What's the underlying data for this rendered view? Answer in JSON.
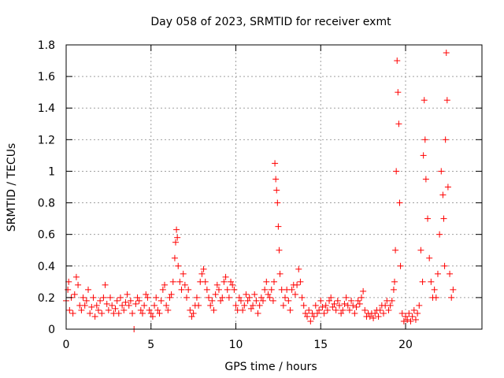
{
  "chart_data": {
    "type": "scatter",
    "title": "Day 058 of 2023, SRMTID for receiver exmt",
    "xlabel": "GPS time / hours",
    "ylabel": "SRMTID / TECUs",
    "xlim": [
      0,
      24.5
    ],
    "ylim": [
      0,
      1.8
    ],
    "x_ticks": [
      0,
      5,
      10,
      15,
      20
    ],
    "x_tick_labels": [
      "0",
      "5",
      "10",
      "15",
      "20"
    ],
    "y_ticks": [
      0,
      0.2,
      0.4,
      0.6,
      0.8,
      1,
      1.2,
      1.4,
      1.6,
      1.8
    ],
    "y_tick_labels": [
      "0",
      "0.2",
      "0.4",
      "0.6",
      "0.8",
      "1",
      "1.2",
      "1.4",
      "1.6",
      "1.8"
    ],
    "grid": true,
    "marker": "plus",
    "color": "#ff0000",
    "series": [
      {
        "name": "SRMTID",
        "points": [
          [
            0.0,
            0.18
          ],
          [
            0.1,
            0.25
          ],
          [
            0.15,
            0.3
          ],
          [
            0.2,
            0.12
          ],
          [
            0.3,
            0.2
          ],
          [
            0.4,
            0.1
          ],
          [
            0.5,
            0.22
          ],
          [
            0.6,
            0.33
          ],
          [
            0.7,
            0.28
          ],
          [
            0.8,
            0.15
          ],
          [
            0.9,
            0.12
          ],
          [
            1.0,
            0.2
          ],
          [
            1.1,
            0.15
          ],
          [
            1.2,
            0.18
          ],
          [
            1.3,
            0.25
          ],
          [
            1.4,
            0.1
          ],
          [
            1.5,
            0.14
          ],
          [
            1.6,
            0.2
          ],
          [
            1.7,
            0.08
          ],
          [
            1.8,
            0.15
          ],
          [
            1.9,
            0.12
          ],
          [
            2.0,
            0.18
          ],
          [
            2.1,
            0.1
          ],
          [
            2.2,
            0.2
          ],
          [
            2.3,
            0.28
          ],
          [
            2.4,
            0.16
          ],
          [
            2.5,
            0.12
          ],
          [
            2.6,
            0.2
          ],
          [
            2.7,
            0.15
          ],
          [
            2.8,
            0.1
          ],
          [
            2.9,
            0.13
          ],
          [
            3.0,
            0.18
          ],
          [
            3.1,
            0.1
          ],
          [
            3.2,
            0.2
          ],
          [
            3.3,
            0.15
          ],
          [
            3.4,
            0.12
          ],
          [
            3.5,
            0.17
          ],
          [
            3.6,
            0.22
          ],
          [
            3.7,
            0.15
          ],
          [
            3.8,
            0.18
          ],
          [
            3.9,
            0.1
          ],
          [
            4.0,
            0.0
          ],
          [
            4.1,
            0.16
          ],
          [
            4.2,
            0.2
          ],
          [
            4.3,
            0.18
          ],
          [
            4.4,
            0.12
          ],
          [
            4.5,
            0.1
          ],
          [
            4.6,
            0.15
          ],
          [
            4.7,
            0.22
          ],
          [
            4.8,
            0.2
          ],
          [
            4.9,
            0.12
          ],
          [
            5.0,
            0.1
          ],
          [
            5.1,
            0.08
          ],
          [
            5.2,
            0.15
          ],
          [
            5.3,
            0.2
          ],
          [
            5.4,
            0.12
          ],
          [
            5.5,
            0.1
          ],
          [
            5.6,
            0.18
          ],
          [
            5.7,
            0.25
          ],
          [
            5.8,
            0.28
          ],
          [
            5.9,
            0.15
          ],
          [
            6.0,
            0.12
          ],
          [
            6.1,
            0.2
          ],
          [
            6.2,
            0.22
          ],
          [
            6.3,
            0.3
          ],
          [
            6.4,
            0.45
          ],
          [
            6.45,
            0.55
          ],
          [
            6.5,
            0.63
          ],
          [
            6.55,
            0.58
          ],
          [
            6.6,
            0.4
          ],
          [
            6.7,
            0.3
          ],
          [
            6.8,
            0.25
          ],
          [
            6.9,
            0.35
          ],
          [
            7.0,
            0.28
          ],
          [
            7.1,
            0.2
          ],
          [
            7.2,
            0.25
          ],
          [
            7.3,
            0.12
          ],
          [
            7.4,
            0.08
          ],
          [
            7.5,
            0.1
          ],
          [
            7.6,
            0.15
          ],
          [
            7.7,
            0.2
          ],
          [
            7.8,
            0.15
          ],
          [
            7.9,
            0.3
          ],
          [
            8.0,
            0.35
          ],
          [
            8.1,
            0.38
          ],
          [
            8.2,
            0.3
          ],
          [
            8.3,
            0.25
          ],
          [
            8.4,
            0.2
          ],
          [
            8.5,
            0.15
          ],
          [
            8.6,
            0.18
          ],
          [
            8.7,
            0.12
          ],
          [
            8.8,
            0.22
          ],
          [
            8.9,
            0.28
          ],
          [
            9.0,
            0.25
          ],
          [
            9.1,
            0.18
          ],
          [
            9.2,
            0.2
          ],
          [
            9.3,
            0.3
          ],
          [
            9.4,
            0.33
          ],
          [
            9.5,
            0.25
          ],
          [
            9.6,
            0.2
          ],
          [
            9.7,
            0.3
          ],
          [
            9.8,
            0.28
          ],
          [
            9.9,
            0.25
          ],
          [
            10.0,
            0.15
          ],
          [
            10.1,
            0.12
          ],
          [
            10.2,
            0.2
          ],
          [
            10.3,
            0.18
          ],
          [
            10.4,
            0.12
          ],
          [
            10.5,
            0.15
          ],
          [
            10.6,
            0.22
          ],
          [
            10.7,
            0.18
          ],
          [
            10.8,
            0.2
          ],
          [
            10.9,
            0.13
          ],
          [
            11.0,
            0.15
          ],
          [
            11.1,
            0.22
          ],
          [
            11.2,
            0.18
          ],
          [
            11.3,
            0.1
          ],
          [
            11.4,
            0.15
          ],
          [
            11.5,
            0.2
          ],
          [
            11.6,
            0.18
          ],
          [
            11.7,
            0.25
          ],
          [
            11.8,
            0.3
          ],
          [
            11.9,
            0.22
          ],
          [
            12.0,
            0.2
          ],
          [
            12.1,
            0.25
          ],
          [
            12.2,
            0.18
          ],
          [
            12.25,
            0.3
          ],
          [
            12.3,
            1.05
          ],
          [
            12.35,
            0.95
          ],
          [
            12.4,
            0.88
          ],
          [
            12.45,
            0.8
          ],
          [
            12.5,
            0.65
          ],
          [
            12.55,
            0.5
          ],
          [
            12.6,
            0.35
          ],
          [
            12.7,
            0.25
          ],
          [
            12.8,
            0.15
          ],
          [
            12.9,
            0.2
          ],
          [
            13.0,
            0.25
          ],
          [
            13.1,
            0.18
          ],
          [
            13.2,
            0.12
          ],
          [
            13.3,
            0.25
          ],
          [
            13.4,
            0.28
          ],
          [
            13.5,
            0.22
          ],
          [
            13.6,
            0.28
          ],
          [
            13.7,
            0.38
          ],
          [
            13.8,
            0.3
          ],
          [
            13.9,
            0.2
          ],
          [
            14.0,
            0.15
          ],
          [
            14.1,
            0.1
          ],
          [
            14.2,
            0.08
          ],
          [
            14.3,
            0.12
          ],
          [
            14.4,
            0.05
          ],
          [
            14.5,
            0.1
          ],
          [
            14.6,
            0.08
          ],
          [
            14.7,
            0.15
          ],
          [
            14.8,
            0.1
          ],
          [
            14.9,
            0.12
          ],
          [
            15.0,
            0.18
          ],
          [
            15.1,
            0.14
          ],
          [
            15.2,
            0.1
          ],
          [
            15.3,
            0.15
          ],
          [
            15.4,
            0.12
          ],
          [
            15.5,
            0.18
          ],
          [
            15.6,
            0.2
          ],
          [
            15.7,
            0.14
          ],
          [
            15.8,
            0.16
          ],
          [
            15.9,
            0.12
          ],
          [
            16.0,
            0.18
          ],
          [
            16.1,
            0.15
          ],
          [
            16.2,
            0.1
          ],
          [
            16.3,
            0.12
          ],
          [
            16.4,
            0.16
          ],
          [
            16.5,
            0.2
          ],
          [
            16.6,
            0.15
          ],
          [
            16.7,
            0.12
          ],
          [
            16.8,
            0.18
          ],
          [
            16.9,
            0.15
          ],
          [
            17.0,
            0.1
          ],
          [
            17.1,
            0.14
          ],
          [
            17.2,
            0.18
          ],
          [
            17.3,
            0.16
          ],
          [
            17.4,
            0.2
          ],
          [
            17.5,
            0.24
          ],
          [
            17.6,
            0.12
          ],
          [
            17.7,
            0.08
          ],
          [
            17.8,
            0.1
          ],
          [
            17.9,
            0.08
          ],
          [
            18.0,
            0.1
          ],
          [
            18.1,
            0.07
          ],
          [
            18.2,
            0.1
          ],
          [
            18.3,
            0.12
          ],
          [
            18.4,
            0.08
          ],
          [
            18.5,
            0.12
          ],
          [
            18.6,
            0.15
          ],
          [
            18.7,
            0.1
          ],
          [
            18.8,
            0.15
          ],
          [
            18.9,
            0.18
          ],
          [
            19.0,
            0.12
          ],
          [
            19.1,
            0.15
          ],
          [
            19.2,
            0.18
          ],
          [
            19.3,
            0.25
          ],
          [
            19.35,
            0.3
          ],
          [
            19.4,
            0.5
          ],
          [
            19.45,
            1.0
          ],
          [
            19.5,
            1.7
          ],
          [
            19.55,
            1.5
          ],
          [
            19.6,
            1.3
          ],
          [
            19.65,
            0.8
          ],
          [
            19.7,
            0.4
          ],
          [
            19.8,
            0.1
          ],
          [
            19.9,
            0.05
          ],
          [
            20.0,
            0.08
          ],
          [
            20.1,
            0.06
          ],
          [
            20.2,
            0.1
          ],
          [
            20.3,
            0.05
          ],
          [
            20.4,
            0.08
          ],
          [
            20.5,
            0.12
          ],
          [
            20.6,
            0.06
          ],
          [
            20.7,
            0.1
          ],
          [
            20.8,
            0.15
          ],
          [
            20.9,
            0.5
          ],
          [
            21.0,
            0.3
          ],
          [
            21.05,
            1.1
          ],
          [
            21.1,
            1.45
          ],
          [
            21.15,
            1.2
          ],
          [
            21.2,
            0.95
          ],
          [
            21.3,
            0.7
          ],
          [
            21.4,
            0.45
          ],
          [
            21.5,
            0.3
          ],
          [
            21.6,
            0.2
          ],
          [
            21.7,
            0.25
          ],
          [
            21.8,
            0.2
          ],
          [
            21.9,
            0.35
          ],
          [
            22.0,
            0.6
          ],
          [
            22.1,
            1.0
          ],
          [
            22.2,
            0.85
          ],
          [
            22.25,
            0.7
          ],
          [
            22.3,
            0.4
          ],
          [
            22.35,
            1.2
          ],
          [
            22.4,
            1.75
          ],
          [
            22.45,
            1.45
          ],
          [
            22.5,
            0.9
          ],
          [
            22.6,
            0.35
          ],
          [
            22.7,
            0.2
          ],
          [
            22.8,
            0.25
          ]
        ]
      }
    ]
  }
}
